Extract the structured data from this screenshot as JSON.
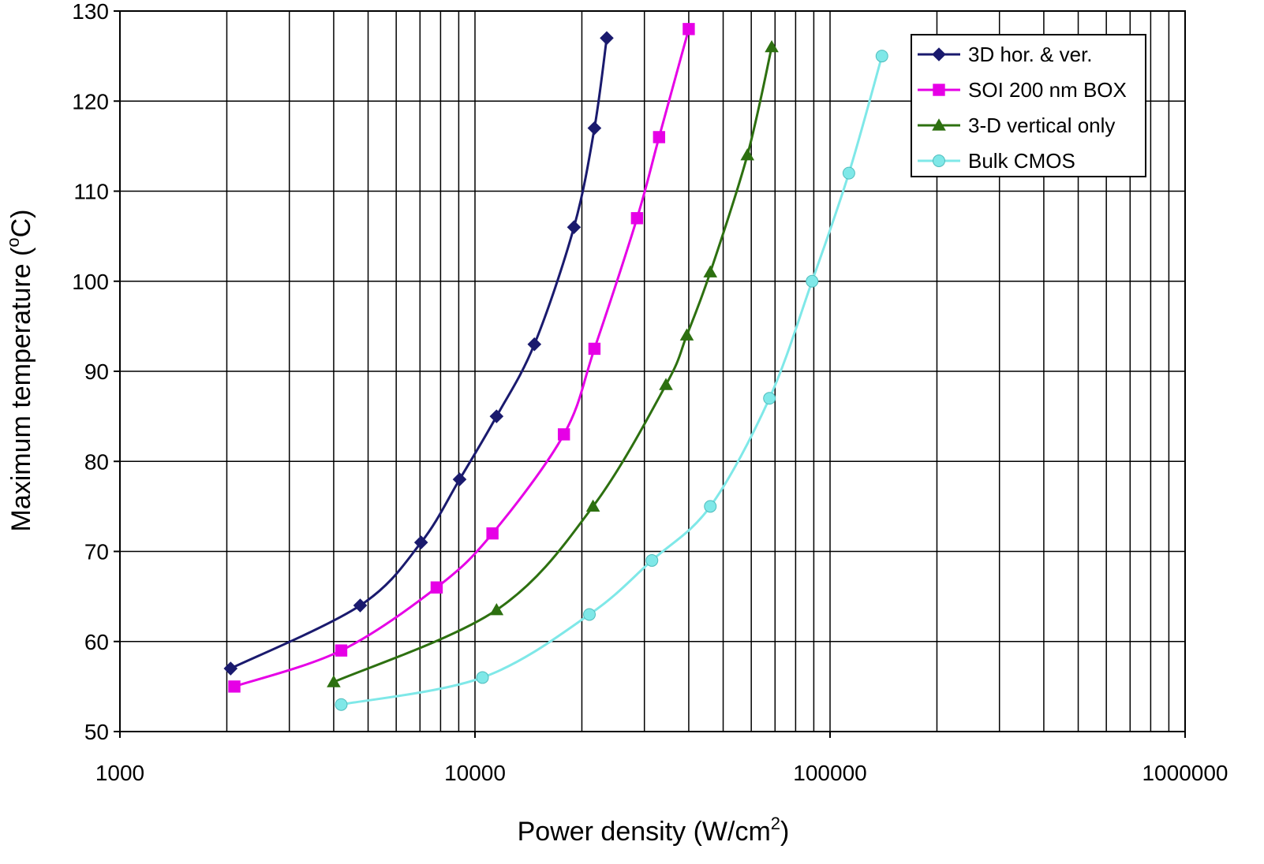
{
  "chart_data": {
    "type": "line",
    "x_scale": "log",
    "xlim": [
      1000,
      1000000
    ],
    "ylim": [
      50,
      130
    ],
    "x_ticks": [
      "1000",
      "10000",
      "100000",
      "1000000"
    ],
    "y_ticks": [
      "50",
      "60",
      "70",
      "80",
      "90",
      "100",
      "110",
      "120",
      "130"
    ],
    "xlabel": "Power density (W/cm",
    "xlabel_sup": "2",
    "xlabel_end": ")",
    "ylabel": "Maximum temperature (",
    "ylabel_sup": "o",
    "ylabel_end": "C)",
    "grid": true,
    "legend_position": "top-right",
    "series": [
      {
        "name": "3D hor. & ver.",
        "color": "#1a1a6e",
        "marker": "diamond",
        "x": [
          2050,
          4750,
          7050,
          9050,
          11500,
          14700,
          19000,
          21700,
          23500
        ],
        "y": [
          57,
          64,
          71,
          78,
          85,
          93,
          106,
          117,
          127
        ]
      },
      {
        "name": "SOI 200 nm BOX",
        "color": "#e600e6",
        "marker": "square",
        "x": [
          2100,
          4200,
          7800,
          11200,
          17800,
          21700,
          28600,
          33000,
          40000
        ],
        "y": [
          55,
          59,
          66,
          72,
          83,
          92.5,
          107,
          116,
          128
        ]
      },
      {
        "name": "3-D vertical only",
        "color": "#2d7010",
        "marker": "triangle",
        "x": [
          4000,
          11500,
          21500,
          34500,
          39500,
          46000,
          58500,
          68500
        ],
        "y": [
          55.5,
          63.5,
          75,
          88.5,
          94,
          101,
          114,
          126
        ]
      },
      {
        "name": "Bulk CMOS",
        "color": "#7fe8e8",
        "marker": "circle",
        "x": [
          4200,
          10500,
          21000,
          31500,
          46000,
          67500,
          89000,
          113000,
          140000
        ],
        "y": [
          53,
          56,
          63,
          69,
          75,
          87,
          100,
          112,
          125
        ]
      }
    ]
  }
}
